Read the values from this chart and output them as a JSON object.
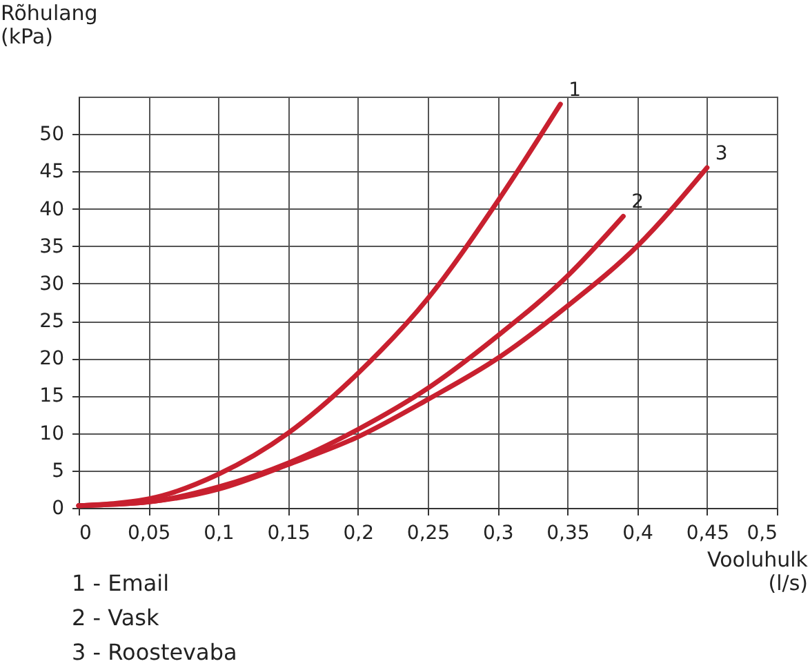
{
  "chart_data": {
    "type": "line",
    "xlabel": "Vooluhulk (l/s)",
    "ylabel": "Rõhulang (kPa)",
    "xlim": [
      0,
      0.5
    ],
    "xticks": [
      0,
      {
        "value": 0.05,
        "label": "0,05"
      },
      {
        "value": 0.1,
        "label": "0,1"
      },
      {
        "value": 0.15,
        "label": "0,15"
      },
      {
        "value": 0.2,
        "label": "0,2"
      },
      {
        "value": 0.25,
        "label": "0,25"
      },
      {
        "value": 0.3,
        "label": "0,3"
      },
      {
        "value": 0.35,
        "label": "0,35"
      },
      {
        "value": 0.4,
        "label": "0,4"
      },
      {
        "value": 0.45,
        "label": "0,45"
      },
      {
        "value": 0.5,
        "label": "0,5"
      }
    ],
    "ylim": [
      0,
      55
    ],
    "yticks": [
      0,
      5,
      10,
      15,
      20,
      25,
      30,
      35,
      40,
      45,
      50
    ],
    "grid": true,
    "legend": false,
    "marker": "none",
    "line_style": "solid",
    "series": [
      {
        "name": "1",
        "color": "#c8202f",
        "x": [
          0,
          0.05,
          0.1,
          0.15,
          0.2,
          0.25,
          0.3,
          0.345
        ],
        "values": [
          0.3,
          1.2,
          4.5,
          10,
          18,
          28,
          41,
          54
        ]
      },
      {
        "name": "2",
        "color": "#c8202f",
        "x": [
          0,
          0.05,
          0.1,
          0.15,
          0.2,
          0.25,
          0.3,
          0.35,
          0.39
        ],
        "values": [
          0.3,
          0.8,
          2.8,
          6,
          10.5,
          16,
          23,
          31,
          39
        ]
      },
      {
        "name": "3",
        "color": "#c8202f",
        "x": [
          0,
          0.05,
          0.1,
          0.15,
          0.2,
          0.25,
          0.3,
          0.35,
          0.4,
          0.45
        ],
        "values": [
          0.3,
          0.8,
          2.5,
          5.8,
          9.5,
          14.5,
          20,
          27,
          35,
          45.5
        ]
      }
    ],
    "annotations": [
      "1 - Email",
      "2 - Vask",
      "3 - Roostevaba"
    ]
  }
}
